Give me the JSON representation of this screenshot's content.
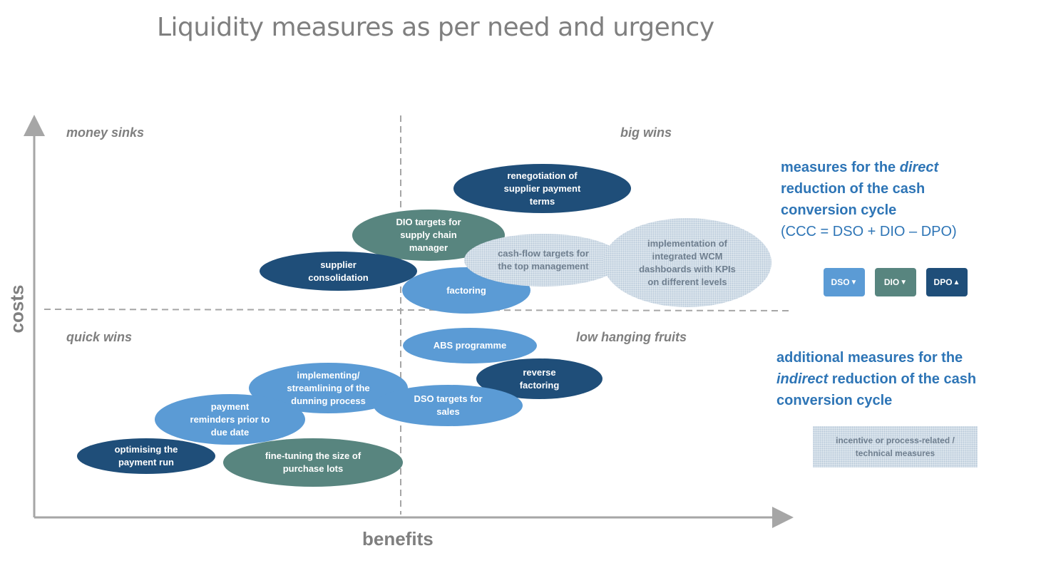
{
  "title": "Liquidity measures as per need and urgency",
  "quadrants": {
    "money_sinks": "money sinks",
    "big_wins": "big wins",
    "quick_wins": "quick wins",
    "low_hanging_fruits": "low hanging fruits"
  },
  "axes": {
    "y": "costs",
    "x": "benefits"
  },
  "measures": {
    "renegotiation": [
      "renegotiation of",
      "supplier payment",
      "terms"
    ],
    "dio_targets": [
      "DIO targets for",
      "supply chain",
      "manager"
    ],
    "cash_flow_targets": [
      "cash-flow targets for",
      "the top management"
    ],
    "wcm_dashboards": [
      "implementation of",
      "integrated WCM",
      "dashboards with KPIs",
      "on different levels"
    ],
    "supplier_consolidation": [
      "supplier",
      "consolidation"
    ],
    "factoring": [
      "factoring"
    ],
    "abs_programme": [
      "ABS programme"
    ],
    "reverse_factoring": [
      "reverse",
      "factoring"
    ],
    "dunning": [
      "implementing/",
      "streamlining of the",
      "dunning process"
    ],
    "dso_targets": [
      "DSO targets for",
      "sales"
    ],
    "payment_reminders": [
      "payment",
      "reminders prior to",
      "due date"
    ],
    "payment_run": [
      "optimising the",
      "payment run"
    ],
    "purchase_lots": [
      "fine-tuning the size of",
      "purchase lots"
    ]
  },
  "legend": {
    "direct": {
      "line1_pre": "measures  for the ",
      "line1_em": "direct",
      "line2": "reduction of the cash",
      "line3": "conversion cycle",
      "formula": "(CCC = DSO + DIO – DPO)"
    },
    "tags": [
      {
        "label": "DSO",
        "arrow": "▼",
        "color": "#5b9bd5"
      },
      {
        "label": "DIO",
        "arrow": "▼",
        "color": "#58857f"
      },
      {
        "label": "DPO",
        "arrow": "▲",
        "color": "#1f4e79"
      }
    ],
    "indirect": {
      "line1": "additional  measures for the",
      "line2_em": "indirect",
      "line2_post": " reduction of the cash",
      "line3": "conversion cycle"
    },
    "dotted_box": [
      "incentive or process-related /",
      "technical measures"
    ]
  }
}
